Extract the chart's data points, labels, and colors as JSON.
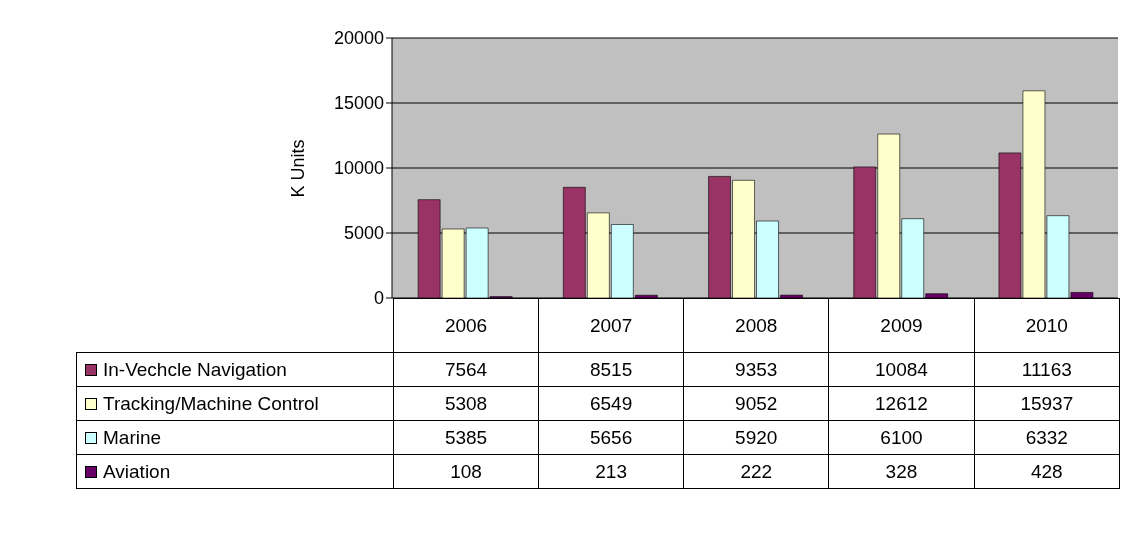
{
  "chart_data": {
    "type": "bar",
    "ylabel": "K Units",
    "categories": [
      "2006",
      "2007",
      "2008",
      "2009",
      "2010"
    ],
    "series": [
      {
        "name": "In-Vechcle Navigation",
        "color": "#993366",
        "values": [
          7564,
          8515,
          9353,
          10084,
          11163
        ]
      },
      {
        "name": "Tracking/Machine Control",
        "color": "#ffffcc",
        "values": [
          5308,
          6549,
          9052,
          12612,
          15937
        ]
      },
      {
        "name": "Marine",
        "color": "#ccffff",
        "values": [
          5385,
          5656,
          5920,
          6100,
          6332
        ]
      },
      {
        "name": "Aviation",
        "color": "#660066",
        "values": [
          108,
          213,
          222,
          328,
          428
        ]
      }
    ],
    "ylim": [
      0,
      20000
    ],
    "yticks": [
      0,
      5000,
      10000,
      15000,
      20000
    ],
    "grid": "y",
    "legend": "bottom",
    "data_labels": true
  }
}
